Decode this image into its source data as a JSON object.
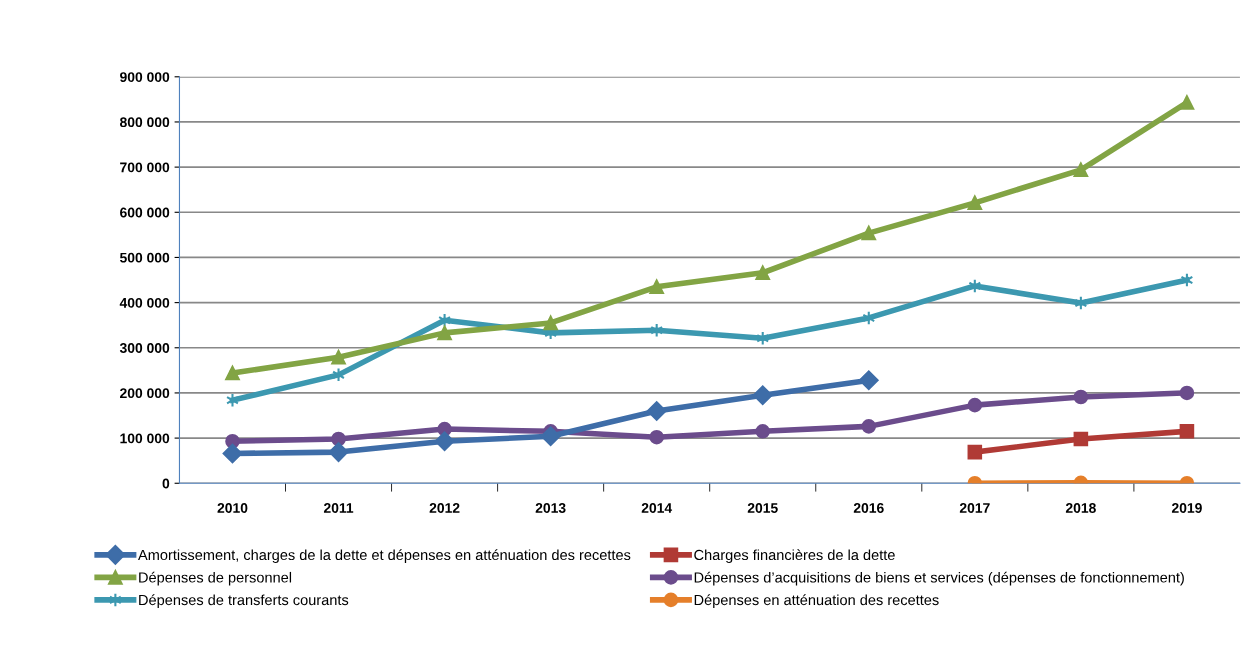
{
  "chart_data": {
    "type": "line",
    "categories": [
      "2010",
      "2011",
      "2012",
      "2013",
      "2014",
      "2015",
      "2016",
      "2017",
      "2018",
      "2019"
    ],
    "series": [
      {
        "name": "Amortissement, charges de la dette et dépenses en atténuation des recettes",
        "color": "#3e6da8",
        "marker": "diamond",
        "values": [
          66000,
          69000,
          93000,
          104000,
          160000,
          195000,
          228000,
          null,
          null,
          null
        ]
      },
      {
        "name": "Charges financières de la dette",
        "color": "#b03a35",
        "marker": "square",
        "values": [
          null,
          null,
          null,
          null,
          null,
          null,
          null,
          69000,
          98000,
          115000
        ]
      },
      {
        "name": "Dépenses de personnel",
        "color": "#82a444",
        "marker": "triangle",
        "values": [
          244000,
          279000,
          333000,
          355000,
          435000,
          466000,
          554000,
          621000,
          694000,
          843000
        ]
      },
      {
        "name": "Dépenses d’acquisitions de biens et services (dépenses de fonctionnement)",
        "color": "#6b4c8c",
        "marker": "circle",
        "values": [
          93000,
          98000,
          120000,
          115000,
          102000,
          115000,
          126000,
          173000,
          191000,
          200000
        ]
      },
      {
        "name": "Dépenses de transferts courants",
        "color": "#3c98b0",
        "marker": "cross",
        "values": [
          184000,
          240000,
          361000,
          333000,
          339000,
          321000,
          366000,
          437000,
          399000,
          450000
        ]
      },
      {
        "name": "Dépenses en atténuation des recettes",
        "color": "#e57f2a",
        "marker": "circle",
        "values": [
          null,
          null,
          null,
          null,
          null,
          null,
          null,
          0,
          1000,
          0
        ]
      }
    ],
    "ylim": [
      0,
      900000
    ],
    "yticks": [
      {
        "value": 0,
        "label": "0"
      },
      {
        "value": 100000,
        "label": "100 000"
      },
      {
        "value": 200000,
        "label": "200 000"
      },
      {
        "value": 300000,
        "label": "300 000"
      },
      {
        "value": 400000,
        "label": "400 000"
      },
      {
        "value": 500000,
        "label": "500 000"
      },
      {
        "value": 600000,
        "label": "600 000"
      },
      {
        "value": 700000,
        "label": "700 000"
      },
      {
        "value": 800000,
        "label": "800 000"
      },
      {
        "value": 900000,
        "label": "900 000"
      }
    ],
    "grid": "y",
    "legend": "bottom",
    "line_style": "solid"
  }
}
